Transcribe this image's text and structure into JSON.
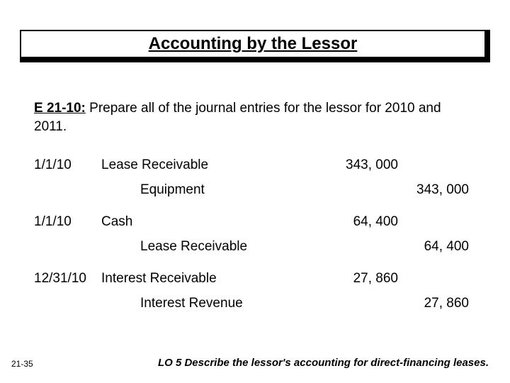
{
  "title": "Accounting by the Lessor",
  "exercise": {
    "label": "E 21-10:",
    "text": "  Prepare all of the journal entries for the lessor for 2010 and 2011."
  },
  "entries": [
    {
      "date": "1/1/10",
      "account": "Lease Receivable",
      "indent": false,
      "debit": "343, 000",
      "credit": ""
    },
    {
      "date": "",
      "account": "Equipment",
      "indent": true,
      "debit": "",
      "credit": "343, 000"
    },
    {
      "date": "1/1/10",
      "account": "Cash",
      "indent": false,
      "debit": "64, 400",
      "credit": ""
    },
    {
      "date": "",
      "account": "Lease Receivable",
      "indent": true,
      "debit": "",
      "credit": "64, 400"
    },
    {
      "date": "12/31/10",
      "account": "Interest Receivable",
      "indent": false,
      "debit": "27, 860",
      "credit": ""
    },
    {
      "date": "",
      "account": "Interest Revenue",
      "indent": true,
      "debit": "",
      "credit": "27, 860"
    }
  ],
  "slide_number": "21-35",
  "learning_objective": "LO 5  Describe the lessor's accounting for direct-financing leases.",
  "colors": {
    "background": "#ffffff",
    "text": "#000000",
    "title_border": "#000000",
    "title_shadow": "#000000"
  },
  "fonts": {
    "title_size_pt": 18,
    "body_size_pt": 14,
    "footer_size_pt": 11
  }
}
